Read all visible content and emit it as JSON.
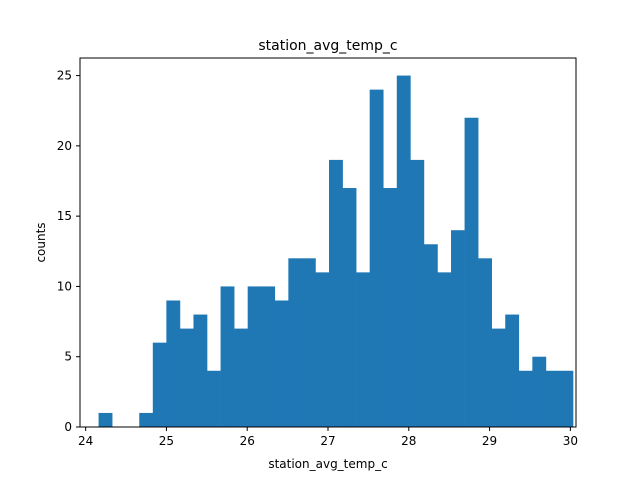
{
  "chart_data": {
    "type": "bar",
    "title": "station_avg_temp_c",
    "xlabel": "station_avg_temp_c",
    "ylabel": "counts",
    "xlim": [
      23.93,
      30.07
    ],
    "ylim": [
      0,
      26.25
    ],
    "bin_start": 24.16,
    "bin_width": 0.1678,
    "values": [
      1,
      0,
      0,
      1,
      6,
      9,
      7,
      8,
      4,
      10,
      7,
      10,
      10,
      9,
      12,
      12,
      11,
      19,
      17,
      11,
      24,
      17,
      25,
      19,
      13,
      11,
      14,
      22,
      12,
      7,
      8,
      4,
      5,
      4,
      4
    ],
    "xticks": [
      24,
      25,
      26,
      27,
      28,
      29,
      30
    ],
    "yticks": [
      0,
      5,
      10,
      15,
      20,
      25
    ],
    "color": "#1f77b4",
    "grid": false,
    "legend": "none"
  }
}
